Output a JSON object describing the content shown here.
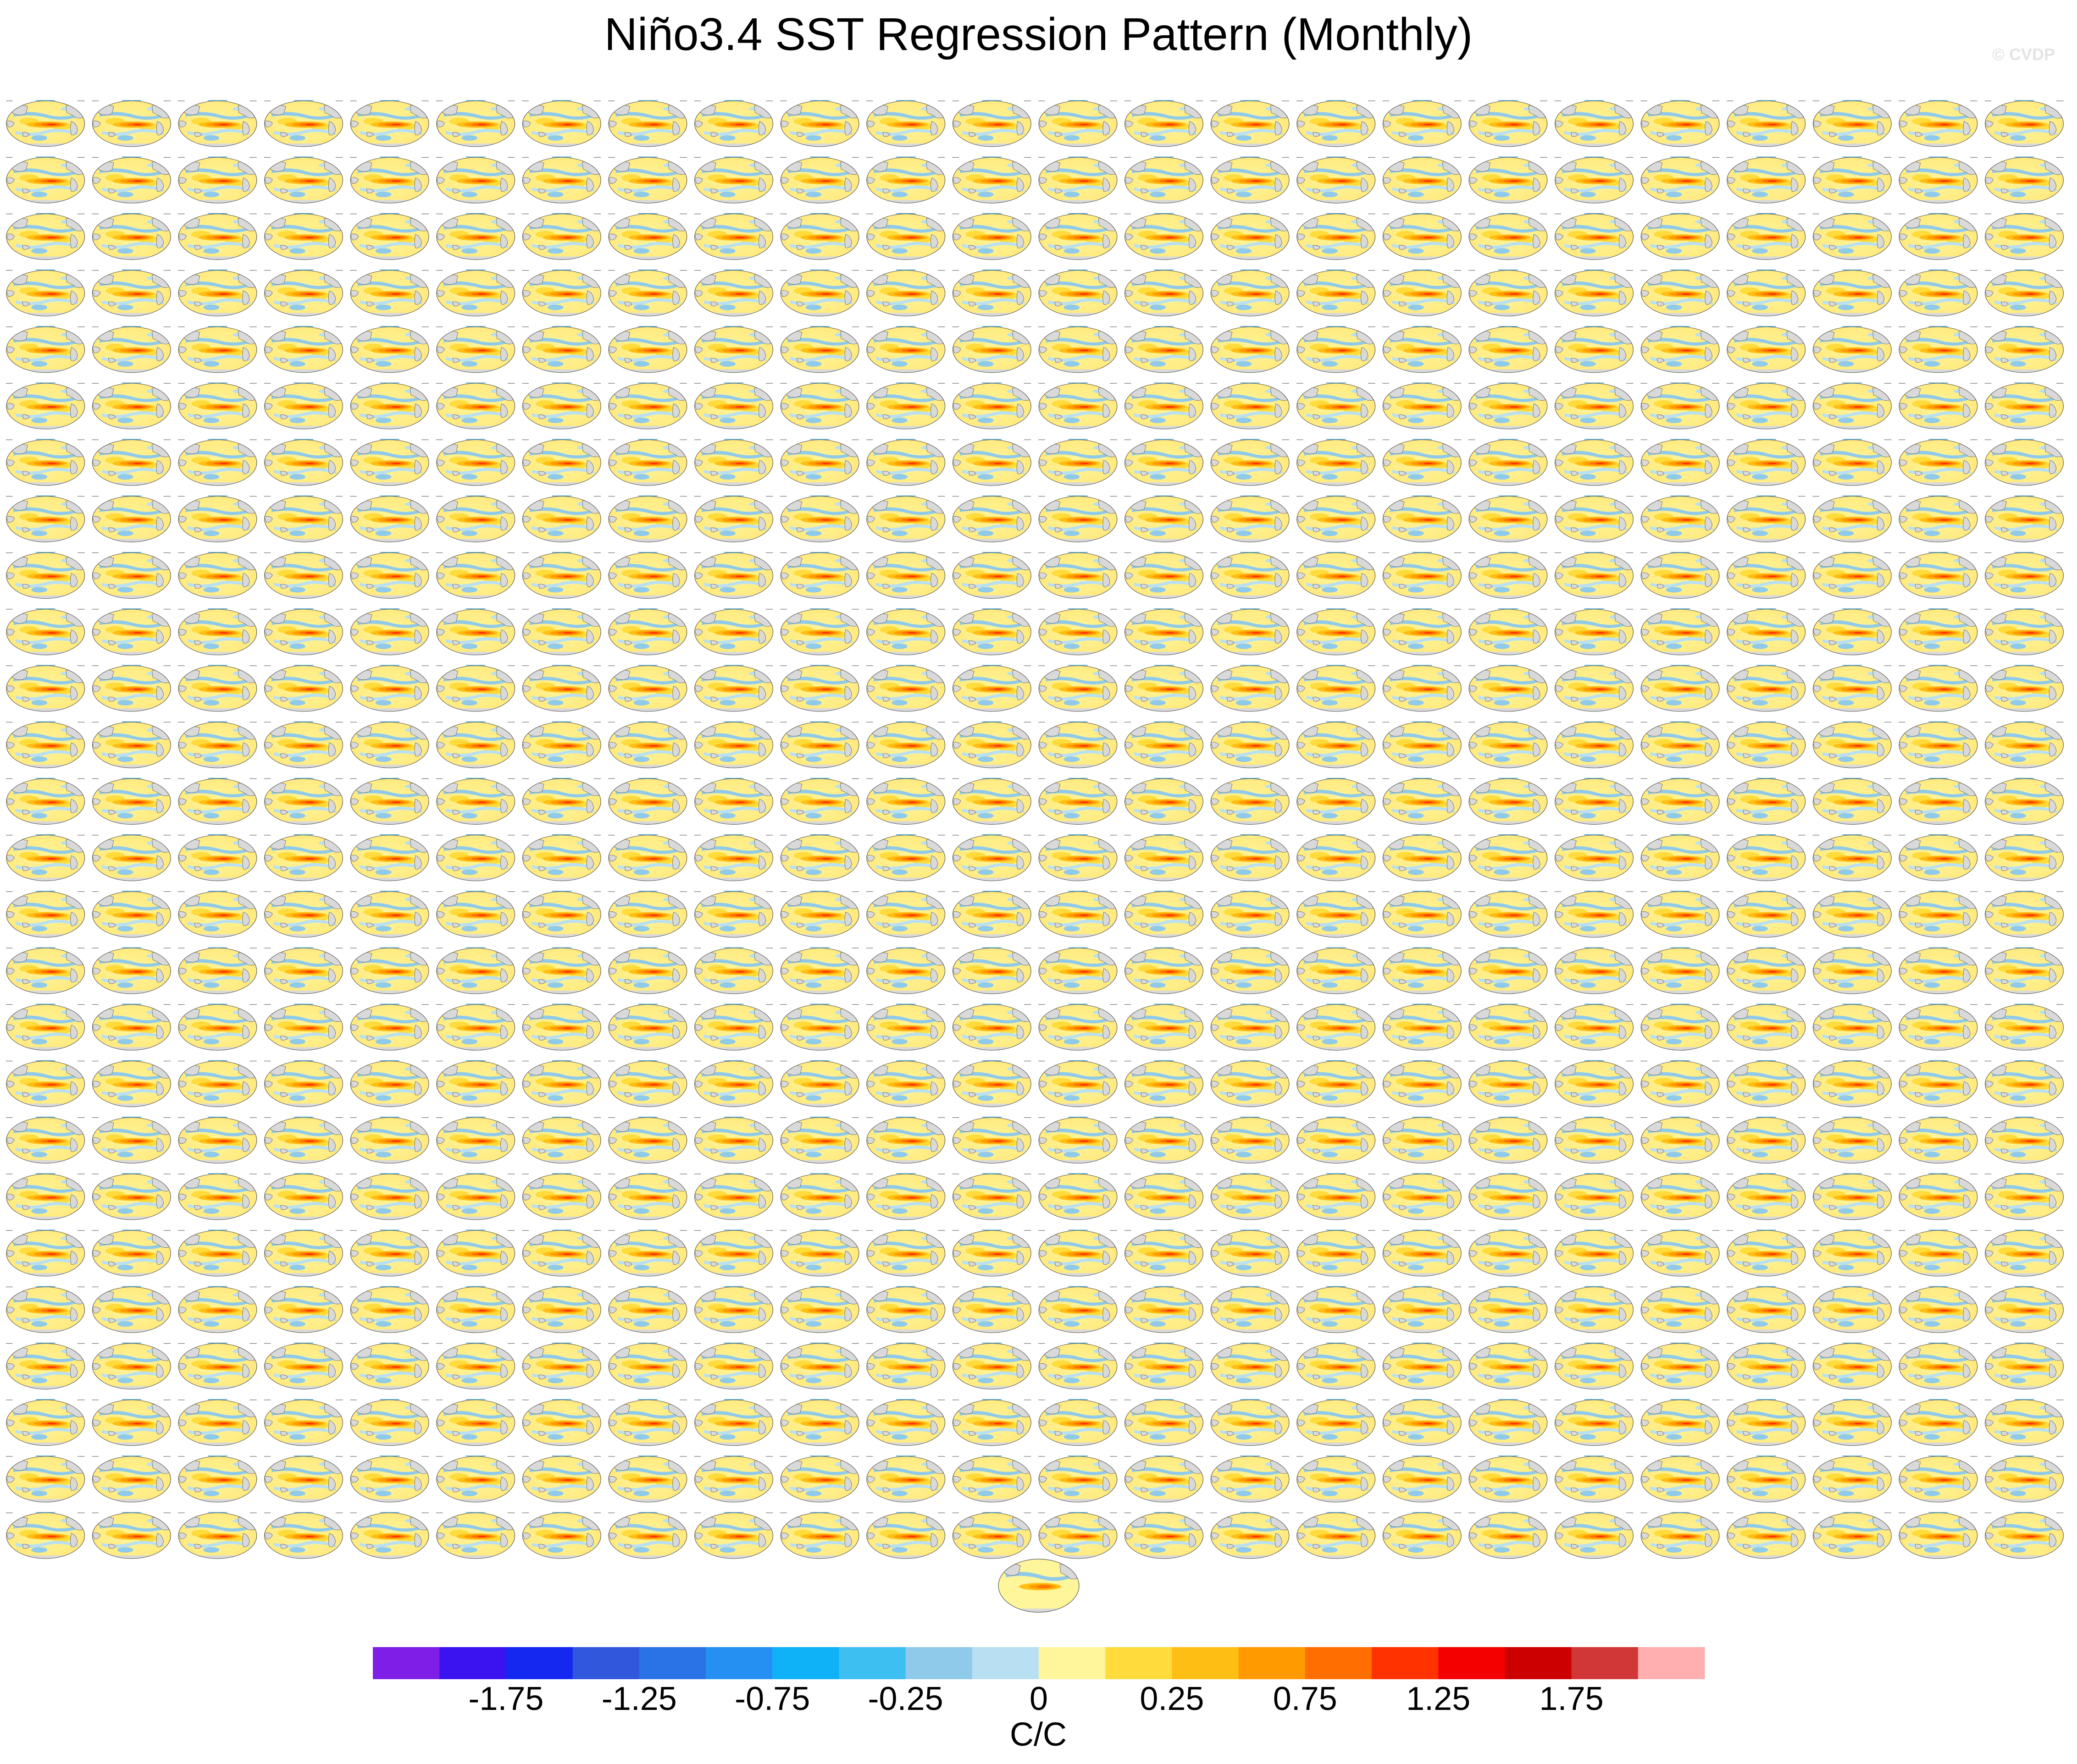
{
  "figure": {
    "title": "Niño3.4 SST Regression Pattern (Monthly)",
    "credit": "© CVDP"
  },
  "panel_grid": {
    "rows": 26,
    "columns": 24,
    "extra_panels": 1,
    "projection": "global-ellipse-map",
    "land_color": "#d9d9d9",
    "coast_color": "#555555"
  },
  "colorbar": {
    "units": "C/C",
    "tick_labels": [
      "-1.75",
      "-1.25",
      "-0.75",
      "-0.25",
      "0",
      "0.25",
      "0.75",
      "1.25",
      "1.75"
    ],
    "colors": [
      "#7e1ee6",
      "#3a13f0",
      "#1428f0",
      "#3057dc",
      "#2a73e6",
      "#2690f2",
      "#0fb2f7",
      "#3dbff2",
      "#90caea",
      "#b9e0f2",
      "#fff59a",
      "#ffdc3c",
      "#ffbe14",
      "#ff9b00",
      "#ff6e00",
      "#ff3200",
      "#f50000",
      "#cd0000",
      "#d23737",
      "#ffafaf"
    ]
  }
}
